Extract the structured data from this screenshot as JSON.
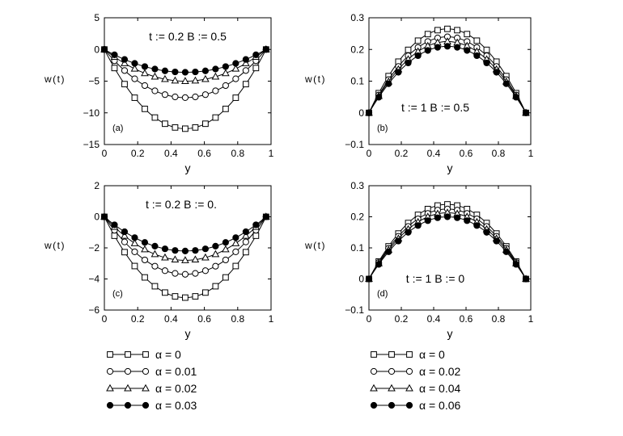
{
  "chart_data": [
    {
      "panel": "(a)",
      "type": "line",
      "annotation": "t := 0.2   B := 0.5",
      "xlabel": "y",
      "ylabel": "w(t)",
      "xlim": [
        0,
        1
      ],
      "ylim": [
        -15,
        5
      ],
      "xticks": [
        0,
        0.2,
        0.4,
        0.6,
        0.8,
        1
      ],
      "xtick_labels": [
        "0",
        "0.2",
        "0.4",
        "0.6",
        "0.8",
        "1"
      ],
      "yticks": [
        5,
        0,
        -5,
        -10,
        -15
      ],
      "ytick_labels": [
        "5",
        "0",
        "−5",
        "−10",
        "−15"
      ],
      "x_end": 0.97,
      "series": [
        {
          "marker": "square",
          "min": -12.5
        },
        {
          "marker": "circle-open",
          "min": -7.6
        },
        {
          "marker": "triangle",
          "min": -5.0
        },
        {
          "marker": "circle-filled",
          "min": -3.6
        }
      ]
    },
    {
      "panel": "(b)",
      "type": "line",
      "annotation": "t := 1   B := 0.5",
      "xlabel": "y",
      "ylabel": "w(t)",
      "xlim": [
        0,
        1
      ],
      "ylim": [
        -0.1,
        0.3
      ],
      "xticks": [
        0,
        0.2,
        0.4,
        0.6,
        0.8,
        1
      ],
      "xtick_labels": [
        "0",
        "0.2",
        "0.4",
        "0.6",
        "0.8",
        "1"
      ],
      "yticks": [
        0.3,
        0.2,
        0.1,
        0,
        -0.1
      ],
      "ytick_labels": [
        "0.3",
        "0.2",
        "0.1",
        "0",
        "−0.1"
      ],
      "x_end": 0.97,
      "series": [
        {
          "marker": "square",
          "max": 0.265
        },
        {
          "marker": "circle-open",
          "max": 0.24
        },
        {
          "marker": "triangle",
          "max": 0.225
        },
        {
          "marker": "circle-filled",
          "max": 0.21
        }
      ]
    },
    {
      "panel": "(c)",
      "type": "line",
      "annotation": "t := 0.2   B := 0.",
      "xlabel": "y",
      "ylabel": "w(t)",
      "xlim": [
        0,
        1
      ],
      "ylim": [
        -6,
        2
      ],
      "xticks": [
        0,
        0.2,
        0.4,
        0.6,
        0.8,
        1
      ],
      "xtick_labels": [
        "0",
        "0.2",
        "0.4",
        "0.6",
        "0.8",
        "1"
      ],
      "yticks": [
        2,
        0,
        -2,
        -4,
        -6
      ],
      "ytick_labels": [
        "2",
        "0",
        "−2",
        "−4",
        "−6"
      ],
      "x_end": 0.97,
      "series": [
        {
          "marker": "square",
          "min": -5.2
        },
        {
          "marker": "circle-open",
          "min": -3.7
        },
        {
          "marker": "triangle",
          "min": -2.8
        },
        {
          "marker": "circle-filled",
          "min": -2.2
        }
      ]
    },
    {
      "panel": "(d)",
      "type": "line",
      "annotation": "t := 1   B := 0",
      "xlabel": "y",
      "ylabel": "w(t)",
      "xlim": [
        0,
        1
      ],
      "ylim": [
        -0.1,
        0.3
      ],
      "xticks": [
        0,
        0.2,
        0.4,
        0.6,
        0.8,
        1
      ],
      "xtick_labels": [
        "0",
        "0.2",
        "0.4",
        "0.6",
        "0.8",
        "1"
      ],
      "yticks": [
        0.3,
        0.2,
        0.1,
        0,
        -0.1
      ],
      "ytick_labels": [
        "0.3",
        "0.2",
        "0.1",
        "0",
        "−0.1"
      ],
      "x_end": 0.97,
      "series": [
        {
          "marker": "square",
          "max": 0.24
        },
        {
          "marker": "circle-open",
          "max": 0.225
        },
        {
          "marker": "triangle",
          "max": 0.213
        },
        {
          "marker": "circle-filled",
          "max": 0.2
        }
      ]
    }
  ],
  "legend_left": [
    {
      "marker": "square",
      "label": "α = 0"
    },
    {
      "marker": "circle-open",
      "label": "α = 0.01"
    },
    {
      "marker": "triangle",
      "label": "α = 0.02"
    },
    {
      "marker": "circle-filled",
      "label": "α = 0.03"
    }
  ],
  "legend_right": [
    {
      "marker": "square",
      "label": "α = 0"
    },
    {
      "marker": "circle-open",
      "label": "α = 0.02"
    },
    {
      "marker": "triangle",
      "label": "α = 0.04"
    },
    {
      "marker": "circle-filled",
      "label": "α = 0.06"
    }
  ]
}
